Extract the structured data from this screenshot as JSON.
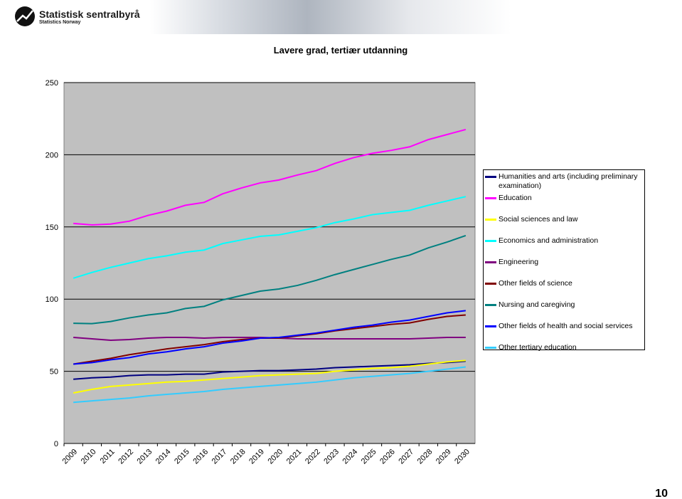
{
  "header": {
    "title": "Statistisk sentralbyrå",
    "subtitle": "Statistics Norway"
  },
  "page_number": "10",
  "chart_data": {
    "type": "line",
    "title": "Lavere grad, tertiær utdanning",
    "categories": [
      "2009",
      "2010",
      "2011",
      "2012",
      "2013",
      "2014",
      "2015",
      "2016",
      "2017",
      "2018",
      "2019",
      "2020",
      "2021",
      "2022",
      "2023",
      "2024",
      "2025",
      "2026",
      "2027",
      "2028",
      "2029",
      "2030"
    ],
    "ylim": [
      0,
      250
    ],
    "yticks": [
      0,
      50,
      100,
      150,
      200,
      250
    ],
    "grid": true,
    "series": [
      {
        "name": "Humanities and arts (including preliminary examination)",
        "color": "#000080",
        "values": [
          44.5,
          45.5,
          46,
          47,
          47.5,
          47.5,
          48,
          48,
          49.5,
          50,
          50.5,
          50.5,
          51,
          51.5,
          52.5,
          53,
          53.5,
          54,
          54.5,
          55.5,
          56,
          57
        ]
      },
      {
        "name": "Education",
        "color": "#ff00ff",
        "values": [
          152.4,
          151.4,
          152,
          154,
          158,
          161,
          165,
          167,
          173,
          177,
          180.5,
          182.5,
          186,
          189,
          194,
          198,
          201,
          203,
          205.5,
          210.5,
          214,
          217.5
        ]
      },
      {
        "name": "Social sciences and law",
        "color": "#ffff00",
        "values": [
          35,
          37.5,
          39.5,
          40.5,
          41.5,
          42.5,
          43,
          44,
          45,
          46,
          47,
          47.5,
          48,
          48.5,
          50,
          51,
          52,
          52.5,
          53.5,
          55,
          56.5,
          57.5
        ]
      },
      {
        "name": "Economics and administration",
        "color": "#00ffff",
        "values": [
          114.5,
          118.5,
          122,
          125,
          128,
          130,
          132.5,
          134,
          138.5,
          141,
          143.5,
          144.5,
          147,
          149.5,
          153,
          155.5,
          158.5,
          160,
          161.5,
          165,
          168,
          171
        ]
      },
      {
        "name": "Engineering",
        "color": "#800080",
        "values": [
          73.5,
          72.5,
          71.5,
          72,
          73,
          73.5,
          73.5,
          73,
          73.5,
          73.5,
          73.5,
          73,
          72.5,
          72.5,
          72.5,
          72.5,
          72.5,
          72.5,
          72.5,
          73,
          73.5,
          73.5
        ]
      },
      {
        "name": "Other fields of science",
        "color": "#800000",
        "values": [
          55,
          57,
          59,
          61.5,
          63.5,
          65.5,
          67,
          68.5,
          70.5,
          72,
          73,
          73,
          74.5,
          76,
          78,
          79.5,
          81,
          82.5,
          83.5,
          86,
          88,
          89
        ]
      },
      {
        "name": "Nursing and caregiving",
        "color": "#008080",
        "values": [
          83.3,
          83,
          84.5,
          87,
          89,
          90.5,
          93.5,
          95,
          99.5,
          102.5,
          105.5,
          107,
          109.5,
          113,
          117,
          120.5,
          124,
          127.5,
          130.5,
          135.5,
          139.5,
          144
        ]
      },
      {
        "name": "Other fields of health and social services",
        "color": "#0000ff",
        "values": [
          55,
          56,
          58,
          59.5,
          62,
          63.5,
          65.5,
          67,
          69.5,
          71,
          73,
          73.5,
          75,
          76.5,
          78.5,
          80.5,
          82,
          84,
          85.5,
          88,
          90.5,
          92
        ]
      },
      {
        "name": "Other tertiary education",
        "color": "#33ccff",
        "values": [
          28.5,
          29.5,
          30.5,
          31.5,
          33,
          34,
          35,
          36,
          37.5,
          38.5,
          39.5,
          40.5,
          41.5,
          42.5,
          44,
          45.5,
          46.5,
          47.5,
          48.5,
          50,
          51.5,
          53
        ]
      }
    ]
  }
}
